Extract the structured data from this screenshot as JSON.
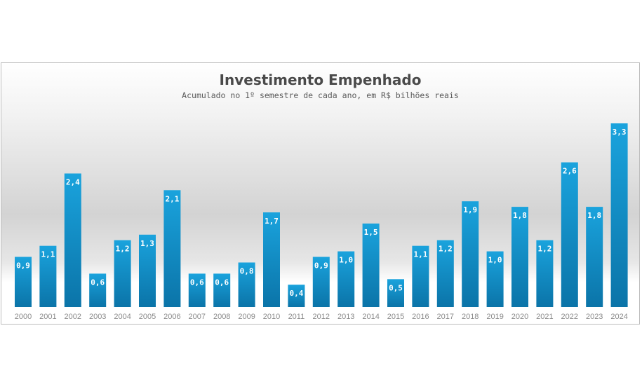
{
  "chart_data": {
    "type": "bar",
    "title": "Investimento Empenhado",
    "subtitle": "Acumulado no 1º semestre de cada ano, em R$ bilhões reais",
    "categories": [
      "2000",
      "2001",
      "2002",
      "2003",
      "2004",
      "2005",
      "2006",
      "2007",
      "2008",
      "2009",
      "2010",
      "2011",
      "2012",
      "2013",
      "2014",
      "2015",
      "2016",
      "2017",
      "2018",
      "2019",
      "2020",
      "2021",
      "2022",
      "2023",
      "2024"
    ],
    "values": [
      0.9,
      1.1,
      2.4,
      0.6,
      1.2,
      1.3,
      2.1,
      0.6,
      0.6,
      0.8,
      1.7,
      0.4,
      0.9,
      1.0,
      1.5,
      0.5,
      1.1,
      1.2,
      1.9,
      1.0,
      1.8,
      1.2,
      2.6,
      1.8,
      3.3
    ],
    "labels": [
      "0,9",
      "1,1",
      "2,4",
      "0,6",
      "1,2",
      "1,3",
      "2,1",
      "0,6",
      "0,6",
      "0,8",
      "1,7",
      "0,4",
      "0,9",
      "1,0",
      "1,5",
      "0,5",
      "1,1",
      "1,2",
      "1,9",
      "1,0",
      "1,8",
      "1,2",
      "2,6",
      "1,8",
      "3,3"
    ],
    "xlabel": "",
    "ylabel": "",
    "ylim": [
      0,
      3.3
    ],
    "grid": false,
    "legend": "none",
    "colors": {
      "bar_top": "#1aa3dd",
      "bar_bottom": "#0b74a8",
      "label": "#ffffff",
      "tick": "#8a8a8a"
    }
  }
}
